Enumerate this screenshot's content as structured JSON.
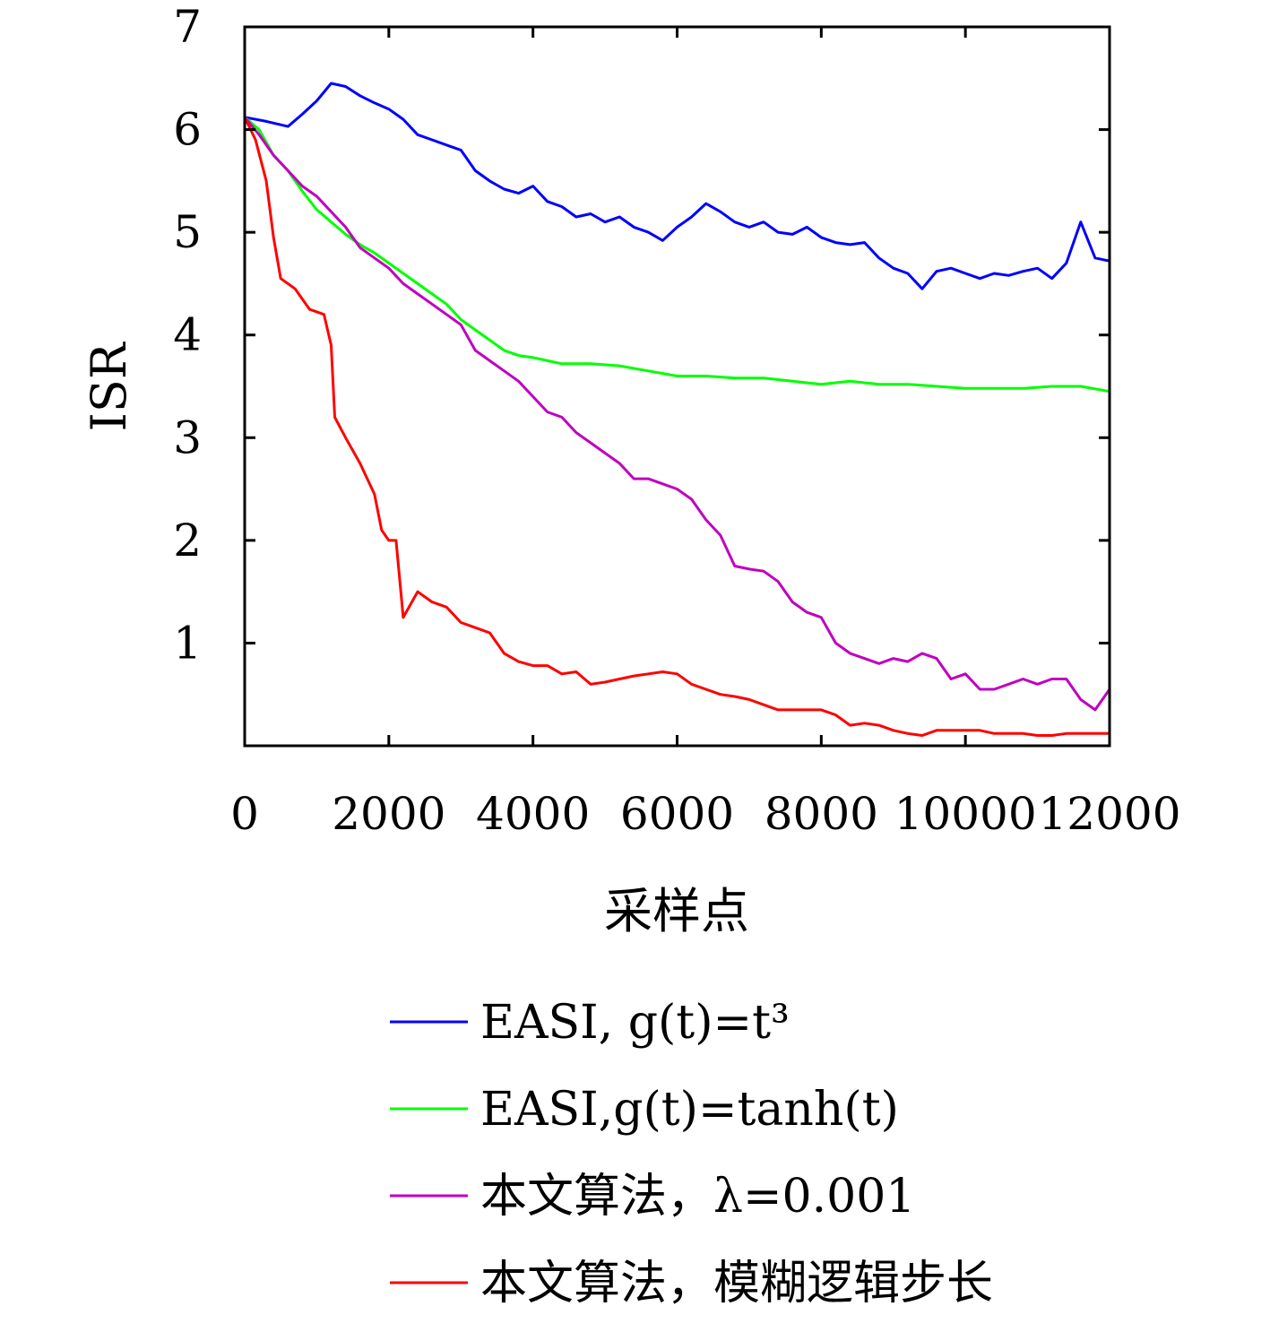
{
  "chart_data": {
    "type": "line",
    "xlabel": "采样点",
    "ylabel": "ISR",
    "xlim": [
      0,
      12000
    ],
    "ylim": [
      0,
      7
    ],
    "x_ticks": [
      0,
      2000,
      4000,
      6000,
      8000,
      10000,
      12000
    ],
    "x_tick_labels": [
      "0",
      "2000",
      "4000",
      "6000",
      "8000",
      "10000",
      "12000"
    ],
    "y_ticks": [
      1,
      2,
      3,
      4,
      5,
      6,
      7
    ],
    "y_tick_labels": [
      "1",
      "2",
      "3",
      "4",
      "5",
      "6",
      "7"
    ],
    "grid": false,
    "legend_position": "bottom",
    "series": [
      {
        "name": "EASI, g(t)=t³",
        "color": "#0000ff",
        "points": [
          [
            0,
            6.12
          ],
          [
            300,
            6.08
          ],
          [
            600,
            6.03
          ],
          [
            800,
            6.15
          ],
          [
            1000,
            6.28
          ],
          [
            1200,
            6.45
          ],
          [
            1400,
            6.42
          ],
          [
            1600,
            6.33
          ],
          [
            1800,
            6.26
          ],
          [
            2000,
            6.2
          ],
          [
            2200,
            6.1
          ],
          [
            2400,
            5.95
          ],
          [
            2600,
            5.9
          ],
          [
            2800,
            5.85
          ],
          [
            3000,
            5.8
          ],
          [
            3200,
            5.6
          ],
          [
            3400,
            5.5
          ],
          [
            3600,
            5.42
          ],
          [
            3800,
            5.38
          ],
          [
            4000,
            5.45
          ],
          [
            4200,
            5.3
          ],
          [
            4400,
            5.25
          ],
          [
            4600,
            5.15
          ],
          [
            4800,
            5.18
          ],
          [
            5000,
            5.1
          ],
          [
            5200,
            5.15
          ],
          [
            5400,
            5.05
          ],
          [
            5600,
            5.0
          ],
          [
            5800,
            4.92
          ],
          [
            6000,
            5.05
          ],
          [
            6200,
            5.15
          ],
          [
            6400,
            5.28
          ],
          [
            6600,
            5.2
          ],
          [
            6800,
            5.1
          ],
          [
            7000,
            5.05
          ],
          [
            7200,
            5.1
          ],
          [
            7400,
            5.0
          ],
          [
            7600,
            4.98
          ],
          [
            7800,
            5.05
          ],
          [
            8000,
            4.95
          ],
          [
            8200,
            4.9
          ],
          [
            8400,
            4.88
          ],
          [
            8600,
            4.9
          ],
          [
            8800,
            4.75
          ],
          [
            9000,
            4.65
          ],
          [
            9200,
            4.6
          ],
          [
            9400,
            4.45
          ],
          [
            9600,
            4.62
          ],
          [
            9800,
            4.65
          ],
          [
            10000,
            4.6
          ],
          [
            10200,
            4.55
          ],
          [
            10400,
            4.6
          ],
          [
            10600,
            4.58
          ],
          [
            10800,
            4.62
          ],
          [
            11000,
            4.65
          ],
          [
            11200,
            4.55
          ],
          [
            11400,
            4.7
          ],
          [
            11600,
            5.1
          ],
          [
            11800,
            4.75
          ],
          [
            12000,
            4.72
          ]
        ]
      },
      {
        "name": "EASI,g(t)=tanh(t)",
        "color": "#00ff00",
        "points": [
          [
            0,
            6.12
          ],
          [
            200,
            6.0
          ],
          [
            400,
            5.75
          ],
          [
            600,
            5.6
          ],
          [
            800,
            5.4
          ],
          [
            1000,
            5.22
          ],
          [
            1200,
            5.1
          ],
          [
            1400,
            4.98
          ],
          [
            1600,
            4.88
          ],
          [
            1800,
            4.8
          ],
          [
            2000,
            4.7
          ],
          [
            2200,
            4.6
          ],
          [
            2400,
            4.5
          ],
          [
            2600,
            4.4
          ],
          [
            2800,
            4.3
          ],
          [
            3000,
            4.15
          ],
          [
            3200,
            4.05
          ],
          [
            3400,
            3.95
          ],
          [
            3600,
            3.85
          ],
          [
            3800,
            3.8
          ],
          [
            4000,
            3.78
          ],
          [
            4400,
            3.72
          ],
          [
            4800,
            3.72
          ],
          [
            5200,
            3.7
          ],
          [
            5600,
            3.65
          ],
          [
            6000,
            3.6
          ],
          [
            6400,
            3.6
          ],
          [
            6800,
            3.58
          ],
          [
            7200,
            3.58
          ],
          [
            7600,
            3.55
          ],
          [
            8000,
            3.52
          ],
          [
            8400,
            3.55
          ],
          [
            8800,
            3.52
          ],
          [
            9200,
            3.52
          ],
          [
            9600,
            3.5
          ],
          [
            10000,
            3.48
          ],
          [
            10400,
            3.48
          ],
          [
            10800,
            3.48
          ],
          [
            11200,
            3.5
          ],
          [
            11600,
            3.5
          ],
          [
            12000,
            3.45
          ]
        ]
      },
      {
        "name": "本文算法，λ=0.001",
        "color": "#c000c0",
        "points": [
          [
            0,
            6.12
          ],
          [
            200,
            5.95
          ],
          [
            400,
            5.75
          ],
          [
            600,
            5.6
          ],
          [
            800,
            5.45
          ],
          [
            1000,
            5.35
          ],
          [
            1200,
            5.2
          ],
          [
            1400,
            5.05
          ],
          [
            1600,
            4.85
          ],
          [
            1800,
            4.75
          ],
          [
            2000,
            4.65
          ],
          [
            2200,
            4.5
          ],
          [
            2400,
            4.4
          ],
          [
            2600,
            4.3
          ],
          [
            2800,
            4.2
          ],
          [
            3000,
            4.1
          ],
          [
            3200,
            3.85
          ],
          [
            3400,
            3.75
          ],
          [
            3600,
            3.65
          ],
          [
            3800,
            3.55
          ],
          [
            4000,
            3.4
          ],
          [
            4200,
            3.25
          ],
          [
            4400,
            3.2
          ],
          [
            4600,
            3.05
          ],
          [
            4800,
            2.95
          ],
          [
            5000,
            2.85
          ],
          [
            5200,
            2.75
          ],
          [
            5400,
            2.6
          ],
          [
            5600,
            2.6
          ],
          [
            5800,
            2.55
          ],
          [
            6000,
            2.5
          ],
          [
            6200,
            2.4
          ],
          [
            6400,
            2.2
          ],
          [
            6600,
            2.05
          ],
          [
            6800,
            1.75
          ],
          [
            7000,
            1.72
          ],
          [
            7200,
            1.7
          ],
          [
            7400,
            1.6
          ],
          [
            7600,
            1.4
          ],
          [
            7800,
            1.3
          ],
          [
            8000,
            1.25
          ],
          [
            8200,
            1.0
          ],
          [
            8400,
            0.9
          ],
          [
            8600,
            0.85
          ],
          [
            8800,
            0.8
          ],
          [
            9000,
            0.85
          ],
          [
            9200,
            0.82
          ],
          [
            9400,
            0.9
          ],
          [
            9600,
            0.85
          ],
          [
            9800,
            0.65
          ],
          [
            10000,
            0.7
          ],
          [
            10200,
            0.55
          ],
          [
            10400,
            0.55
          ],
          [
            10600,
            0.6
          ],
          [
            10800,
            0.65
          ],
          [
            11000,
            0.6
          ],
          [
            11200,
            0.65
          ],
          [
            11400,
            0.65
          ],
          [
            11600,
            0.45
          ],
          [
            11800,
            0.35
          ],
          [
            12000,
            0.55
          ]
        ]
      },
      {
        "name": "本文算法，模糊逻辑步长",
        "color": "#ff0000",
        "points": [
          [
            0,
            6.12
          ],
          [
            150,
            5.9
          ],
          [
            300,
            5.5
          ],
          [
            400,
            4.95
          ],
          [
            500,
            4.55
          ],
          [
            700,
            4.45
          ],
          [
            900,
            4.25
          ],
          [
            1100,
            4.2
          ],
          [
            1200,
            3.9
          ],
          [
            1250,
            3.2
          ],
          [
            1400,
            3.0
          ],
          [
            1600,
            2.75
          ],
          [
            1800,
            2.45
          ],
          [
            1900,
            2.1
          ],
          [
            2000,
            2.0
          ],
          [
            2100,
            2.0
          ],
          [
            2200,
            1.25
          ],
          [
            2400,
            1.5
          ],
          [
            2600,
            1.4
          ],
          [
            2800,
            1.35
          ],
          [
            3000,
            1.2
          ],
          [
            3200,
            1.15
          ],
          [
            3400,
            1.1
          ],
          [
            3600,
            0.9
          ],
          [
            3800,
            0.82
          ],
          [
            4000,
            0.78
          ],
          [
            4200,
            0.78
          ],
          [
            4400,
            0.7
          ],
          [
            4600,
            0.72
          ],
          [
            4800,
            0.6
          ],
          [
            5000,
            0.62
          ],
          [
            5200,
            0.65
          ],
          [
            5400,
            0.68
          ],
          [
            5600,
            0.7
          ],
          [
            5800,
            0.72
          ],
          [
            6000,
            0.7
          ],
          [
            6200,
            0.6
          ],
          [
            6400,
            0.55
          ],
          [
            6600,
            0.5
          ],
          [
            6800,
            0.48
          ],
          [
            7000,
            0.45
          ],
          [
            7200,
            0.4
          ],
          [
            7400,
            0.35
          ],
          [
            7600,
            0.35
          ],
          [
            7800,
            0.35
          ],
          [
            8000,
            0.35
          ],
          [
            8200,
            0.3
          ],
          [
            8400,
            0.2
          ],
          [
            8600,
            0.22
          ],
          [
            8800,
            0.2
          ],
          [
            9000,
            0.15
          ],
          [
            9200,
            0.12
          ],
          [
            9400,
            0.1
          ],
          [
            9600,
            0.15
          ],
          [
            9800,
            0.15
          ],
          [
            10000,
            0.15
          ],
          [
            10200,
            0.15
          ],
          [
            10400,
            0.12
          ],
          [
            10600,
            0.12
          ],
          [
            10800,
            0.12
          ],
          [
            11000,
            0.1
          ],
          [
            11200,
            0.1
          ],
          [
            11400,
            0.12
          ],
          [
            11600,
            0.12
          ],
          [
            11800,
            0.12
          ],
          [
            12000,
            0.12
          ]
        ]
      }
    ]
  }
}
